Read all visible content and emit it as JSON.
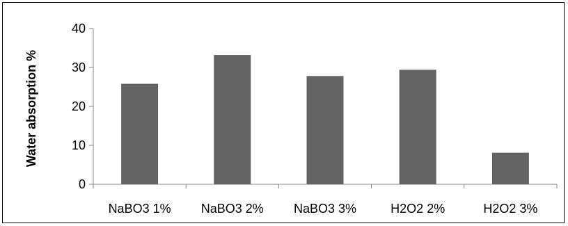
{
  "chart_data": {
    "type": "bar",
    "title": "",
    "xlabel": "",
    "ylabel": "Water absorption %",
    "categories": [
      "NaBO3 1%",
      "NaBO3 2%",
      "NaBO3 3%",
      "H2O2 2%",
      "H2O2 3%"
    ],
    "values": [
      25.8,
      33.2,
      27.8,
      29.4,
      8.1
    ],
    "ylim": [
      0,
      40
    ],
    "yticks": [
      "0",
      "10",
      "20",
      "30",
      "40"
    ],
    "grid": false,
    "legend": "none",
    "bar_color": "#636363",
    "axis_color": "#898989"
  }
}
